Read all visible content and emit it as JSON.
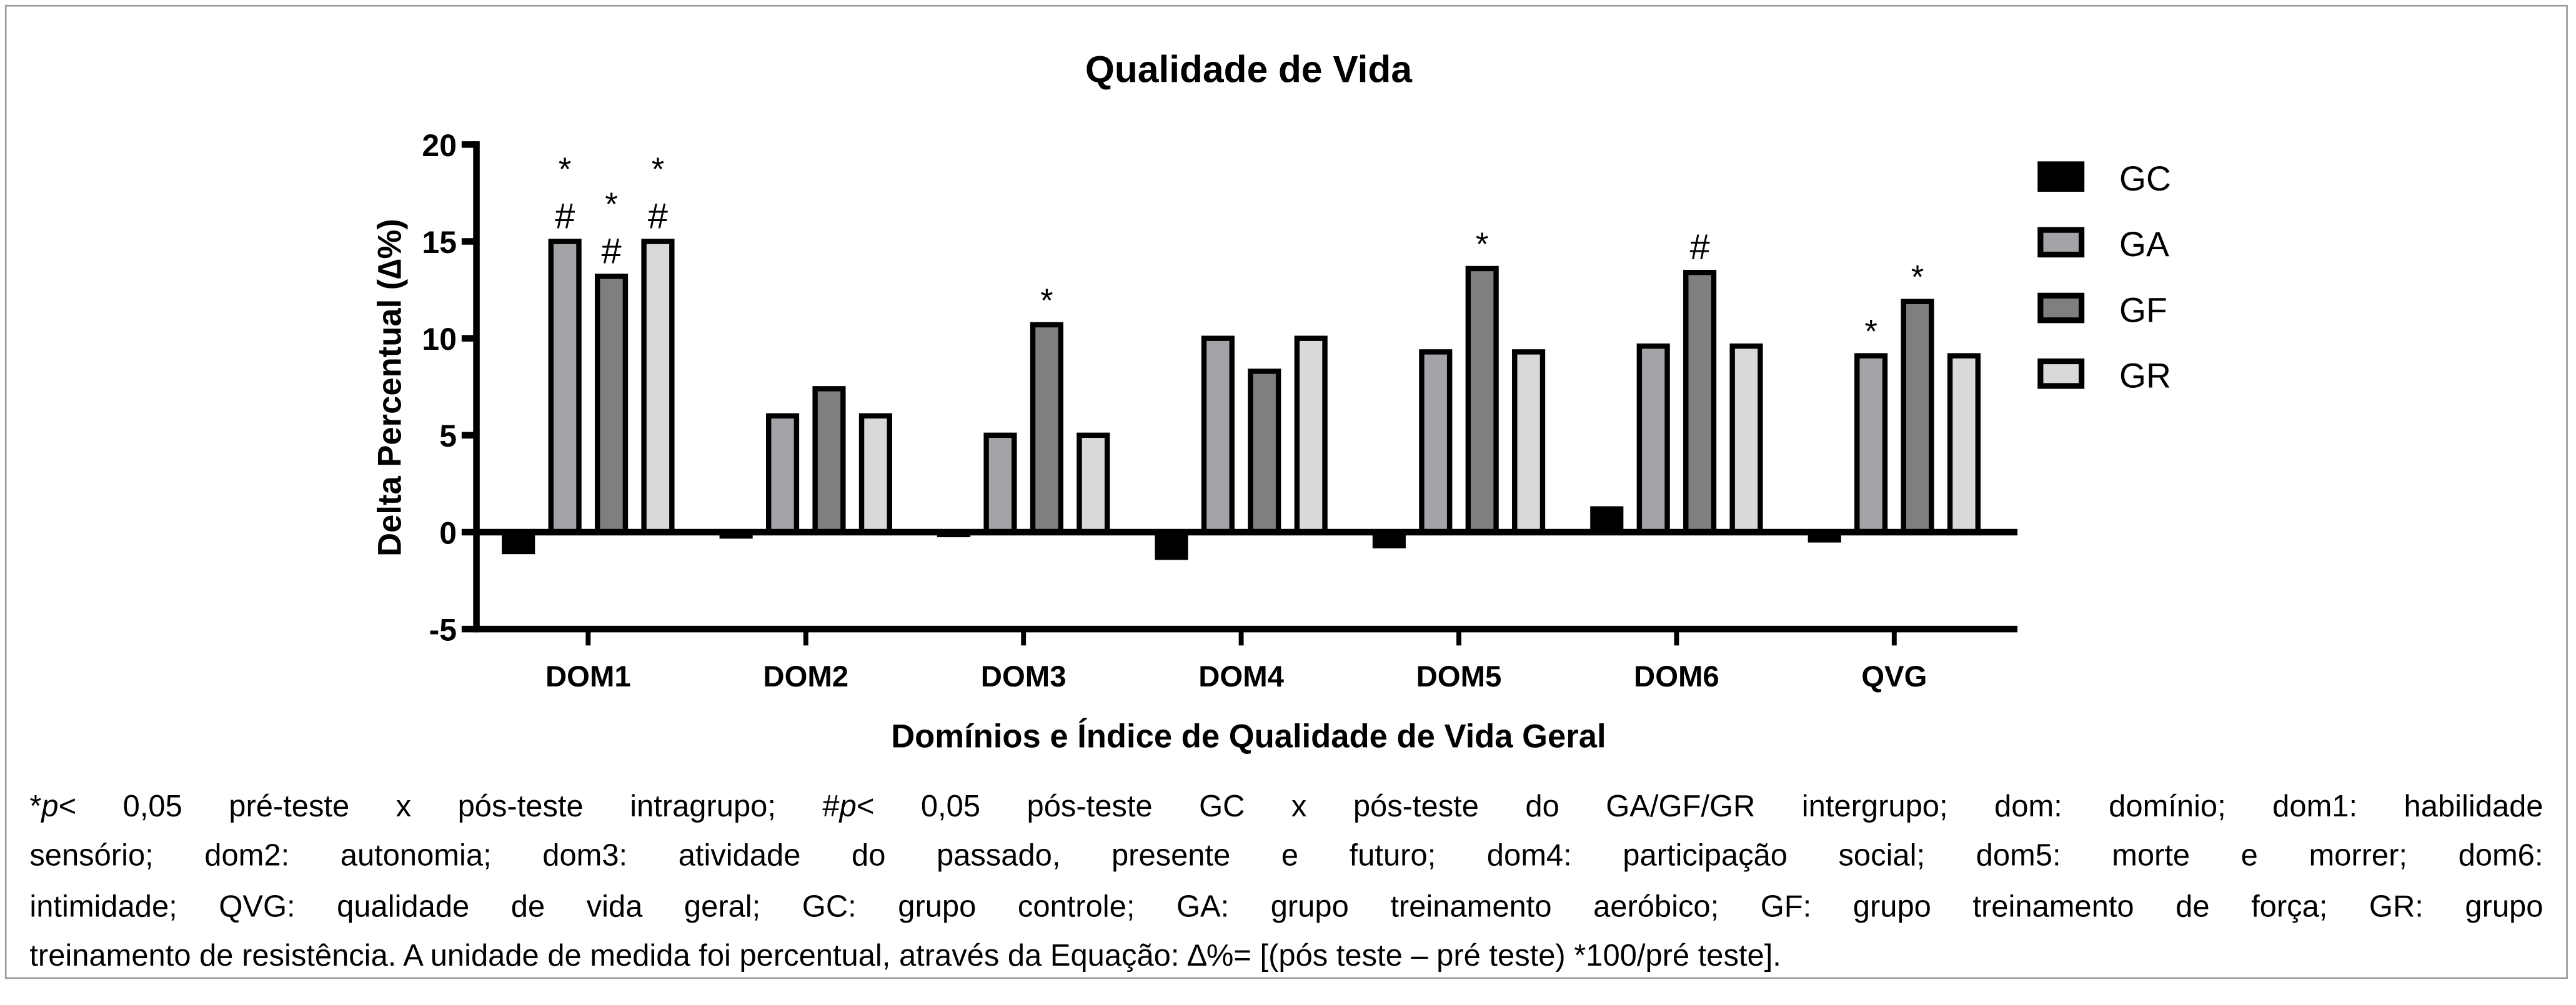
{
  "chart_data": {
    "type": "bar",
    "title": "Qualidade de Vida",
    "xlabel": "Domínios e Índice de Qualidade de Vida Geral",
    "ylabel": "Delta Percentual (∆%)",
    "ylim": [
      -5,
      20
    ],
    "yticks": [
      "20",
      "15",
      "10",
      "5",
      "0",
      "-5"
    ],
    "ytick_values": [
      20,
      15,
      10,
      5,
      0,
      -5
    ],
    "categories": [
      "DOM1",
      "DOM2",
      "DOM3",
      "DOM4",
      "DOM5",
      "DOM6",
      "QVG"
    ],
    "legend_position": "top-right",
    "series": [
      {
        "name": "GC",
        "color": "#000000",
        "values": [
          -1.0,
          -0.2,
          -0.1,
          -1.3,
          -0.7,
          1.2,
          -0.4
        ]
      },
      {
        "name": "GA",
        "color": "#a3a3a8",
        "values": [
          15.0,
          6.0,
          5.0,
          10.0,
          9.3,
          9.6,
          9.1
        ]
      },
      {
        "name": "GF",
        "color": "#7f7f7f",
        "values": [
          13.2,
          7.4,
          10.7,
          8.3,
          13.6,
          13.4,
          11.9
        ]
      },
      {
        "name": "GR",
        "color": "#d9d9d9",
        "values": [
          15.0,
          6.0,
          5.0,
          10.0,
          9.3,
          9.6,
          9.1
        ]
      }
    ],
    "annotations": [
      {
        "category": "DOM1",
        "series": "GA",
        "text": [
          "*",
          "#"
        ]
      },
      {
        "category": "DOM1",
        "series": "GF",
        "text": [
          "*",
          "#"
        ]
      },
      {
        "category": "DOM1",
        "series": "GR",
        "text": [
          "*",
          "#"
        ]
      },
      {
        "category": "DOM3",
        "series": "GF",
        "text": [
          "*"
        ]
      },
      {
        "category": "DOM5",
        "series": "GF",
        "text": [
          "*"
        ]
      },
      {
        "category": "DOM6",
        "series": "GF",
        "text": [
          "#"
        ]
      },
      {
        "category": "QVG",
        "series": "GA",
        "text": [
          "*"
        ]
      },
      {
        "category": "QVG",
        "series": "GF",
        "text": [
          "*"
        ]
      }
    ]
  },
  "caption": {
    "lines": [
      [
        {
          "t": "*"
        },
        {
          "t": "p",
          "i": true
        },
        {
          "t": "< 0,05 pré-teste x pós-teste intragrupo; #"
        },
        {
          "t": "p",
          "i": true
        },
        {
          "t": "< 0,05 pós-teste GC x pós-teste do GA/GF/GR intergrupo; dom: domínio; dom1: habilidade"
        }
      ],
      [
        {
          "t": "sensório; dom2: autonomia; dom3: atividade do passado, presente e futuro; dom4: participação social; dom5: morte e morrer; dom6:"
        }
      ],
      [
        {
          "t": "intimidade; QVG: qualidade de vida geral; GC: grupo controle; GA: grupo treinamento aeróbico; GF: grupo treinamento de força; GR: grupo"
        }
      ],
      [
        {
          "t": "treinamento de resistência. A unidade de medida foi percentual, através da Equação: ∆%= [(pós teste – pré teste) *100/pré teste]."
        }
      ]
    ]
  }
}
